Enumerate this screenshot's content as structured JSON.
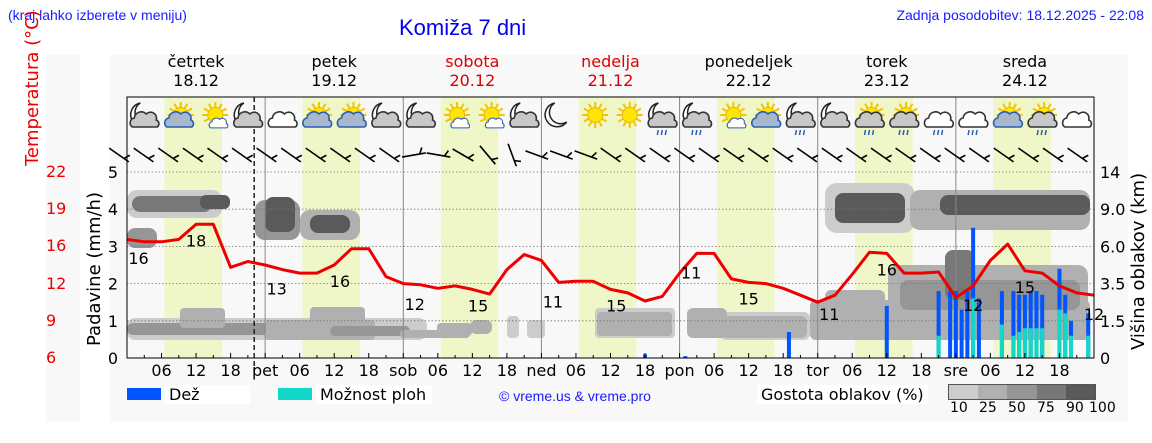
{
  "header": {
    "menu_hint": "(kraj lahko izberete v meniju)",
    "title": "Komiža 7 dni",
    "last_update": "Zadnja posodobitev: 18.12.2025 - 22:08"
  },
  "days": [
    {
      "name": "četrtek",
      "date": "18.12",
      "weekend": false
    },
    {
      "name": "petek",
      "date": "19.12",
      "weekend": false
    },
    {
      "name": "sobota",
      "date": "20.12",
      "weekend": true
    },
    {
      "name": "nedelja",
      "date": "21.12",
      "weekend": true
    },
    {
      "name": "ponedeljek",
      "date": "22.12",
      "weekend": false
    },
    {
      "name": "torek",
      "date": "23.12",
      "weekend": false
    },
    {
      "name": "sreda",
      "date": "24.12",
      "weekend": false
    }
  ],
  "axes": {
    "left_temp_label": "Temperatura (°C)",
    "left_temp_ticks": [
      "22",
      "19",
      "16",
      "12",
      "9",
      "6"
    ],
    "left_precip_label": "Padavine (mm/h)",
    "left_precip_ticks": [
      "5",
      "4",
      "3",
      "2",
      "1",
      "0"
    ],
    "right_label": "Višina oblakov (km)",
    "right_ticks": [
      "14",
      "9.0",
      "6.0",
      "3.5",
      "1.5",
      "0"
    ],
    "x_ticks": [
      "06",
      "12",
      "18",
      "pet",
      "06",
      "12",
      "18",
      "sob",
      "06",
      "12",
      "18",
      "ned",
      "06",
      "12",
      "18",
      "pon",
      "06",
      "12",
      "18",
      "tor",
      "06",
      "12",
      "18",
      "sre",
      "06",
      "12",
      "18"
    ]
  },
  "legend": {
    "rain_label": "Dež",
    "rain_color": "#0055ff",
    "shower_label": "Možnost ploh",
    "shower_color": "#11d8c8",
    "copyright": "© vreme.us & vreme.pro",
    "cloud_density_label": "Gostota oblakov (%)",
    "cloud_density_ticks": [
      "10",
      "25",
      "50",
      "75",
      "90",
      "100"
    ],
    "cloud_density_colors": [
      "#cccccc",
      "#b0b0b0",
      "#969696",
      "#787878",
      "#5a5a5a"
    ]
  },
  "colors": {
    "temperature_line": "#ee0000",
    "daylight_band": "#eff7c8",
    "weekend_text": "#dd0000"
  },
  "weather_icons": [
    "moon-cloud",
    "sun-cloud",
    "sun-small-cloud",
    "moon-cloud",
    "cloud",
    "sun-cloud",
    "sun-cloud",
    "moon-cloud",
    "moon-cloud",
    "sun-small-cloud",
    "sun-small-cloud",
    "moon-cloud",
    "moon",
    "sun",
    "sun",
    "moon-cloud-rain",
    "moon-cloud-rain",
    "sun-small-cloud",
    "sun-cloud",
    "moon-cloud-rain",
    "moon-cloud",
    "sun-cloud-rain",
    "sun-cloud-rain",
    "cloud-rain",
    "cloud-rain",
    "sun-cloud",
    "sun-cloud-rain",
    "cloud"
  ],
  "chart_data": {
    "type": "line",
    "title": "Komiža 7 dni",
    "xlabel": "",
    "ylabel": "Temperatura (°C)",
    "x_range_hours": [
      0,
      168
    ],
    "start": "18.12 00:00",
    "ylim_temperature": [
      6,
      22
    ],
    "ylim_precip": [
      0,
      5
    ],
    "series": [
      {
        "name": "Temperatura (°C)",
        "type": "line",
        "color": "#ee0000",
        "x_hours": [
          0,
          3,
          6,
          9,
          12,
          15,
          18,
          21,
          24,
          27,
          30,
          33,
          36,
          39,
          42,
          45,
          48,
          51,
          54,
          57,
          60,
          63,
          66,
          69,
          72,
          75,
          78,
          81,
          84,
          87,
          90,
          93,
          96,
          99,
          102,
          105,
          108,
          111,
          114,
          117,
          120,
          123,
          126,
          129,
          132,
          135,
          138,
          141,
          144,
          147,
          150,
          153,
          156,
          159,
          162,
          165,
          168
        ],
        "values": [
          16.2,
          16.0,
          16.0,
          16.2,
          17.5,
          17.5,
          13.8,
          14.3,
          14.0,
          13.6,
          13.3,
          13.3,
          14.0,
          15.4,
          15.4,
          13.0,
          12.4,
          12.3,
          12.0,
          12.2,
          11.9,
          11.5,
          13.6,
          14.9,
          14.4,
          12.5,
          12.6,
          12.6,
          11.9,
          11.6,
          10.9,
          11.3,
          13.3,
          15.0,
          15.0,
          12.8,
          12.5,
          12.4,
          12.0,
          11.4,
          10.8,
          11.4,
          13.2,
          15.1,
          15.0,
          13.3,
          13.3,
          13.4,
          11.2,
          12.2,
          14.4,
          15.8,
          13.5,
          13.3,
          12.2,
          11.6,
          11.4
        ]
      },
      {
        "name": "Dež (mm/h)",
        "type": "bar",
        "color": "#0055ff",
        "x_hours": [
          90,
          97,
          115,
          132,
          141,
          143,
          144,
          145,
          146,
          147,
          148,
          152,
          154,
          155,
          156,
          157,
          158,
          159,
          162,
          163,
          164,
          167
        ],
        "values": [
          0.1,
          0.05,
          0.7,
          1.4,
          1.8,
          1.8,
          1.8,
          1.3,
          1.8,
          3.5,
          1.6,
          1.8,
          1.8,
          1.7,
          1.7,
          1.8,
          1.8,
          1.7,
          2.4,
          1.7,
          1.0,
          1.2
        ]
      },
      {
        "name": "Možnost ploh (mm/h)",
        "type": "bar",
        "color": "#11d8c8",
        "x_hours": [
          141,
          147,
          152,
          154,
          155,
          156,
          157,
          158,
          159,
          162,
          163,
          164,
          167
        ],
        "values": [
          0.6,
          1.6,
          0.9,
          0.6,
          0.7,
          0.8,
          0.8,
          0.8,
          0.8,
          1.3,
          1.2,
          0.6,
          0.6
        ]
      }
    ],
    "annotations": [
      {
        "x_hours": 2,
        "label": "16"
      },
      {
        "x_hours": 12,
        "label": "18"
      },
      {
        "x_hours": 26,
        "label": "13"
      },
      {
        "x_hours": 37,
        "label": "16"
      },
      {
        "x_hours": 50,
        "label": "12"
      },
      {
        "x_hours": 61,
        "label": "15"
      },
      {
        "x_hours": 74,
        "label": "11"
      },
      {
        "x_hours": 85,
        "label": "15"
      },
      {
        "x_hours": 98,
        "label": "11"
      },
      {
        "x_hours": 108,
        "label": "15"
      },
      {
        "x_hours": 122,
        "label": "11"
      },
      {
        "x_hours": 132,
        "label": "16"
      },
      {
        "x_hours": 147,
        "label": "12"
      },
      {
        "x_hours": 156,
        "label": "15"
      },
      {
        "x_hours": 168,
        "label": "12"
      }
    ],
    "grid": true,
    "legend_position": "bottom"
  }
}
